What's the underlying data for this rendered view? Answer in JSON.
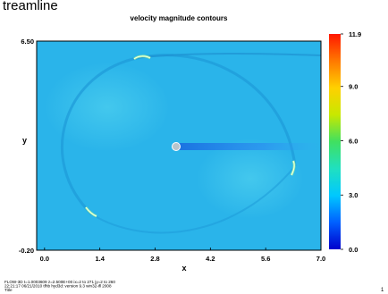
{
  "header_fragment": "treamline",
  "chart_data": {
    "type": "heatmap",
    "title": "velocity magnitude contours",
    "xlabel": "x",
    "ylabel": "y",
    "xlim": [
      -0.2,
      7.0
    ],
    "ylim": [
      -0.2,
      6.5
    ],
    "x_ticks": [
      "0.0",
      "1.4",
      "2.8",
      "4.2",
      "5.6",
      "7.0"
    ],
    "x_tick_values": [
      0.0,
      1.4,
      2.8,
      4.2,
      5.6,
      7.0
    ],
    "y_ticks": [
      "6.50",
      "-0.20"
    ],
    "y_tick_values": [
      6.5,
      -0.2
    ],
    "colorbar": {
      "min": 0.0,
      "max": 11.9,
      "ticks": [
        "11.9",
        "9.0",
        "6.0",
        "3.0",
        "0.0"
      ],
      "tick_values": [
        11.9,
        9.0,
        6.0,
        3.0,
        0.0
      ],
      "colors": [
        "#0000cc",
        "#0060ff",
        "#00c8ff",
        "#20e0c0",
        "#40e060",
        "#c8e800",
        "#ffd000",
        "#ff7800",
        "#ff1800"
      ]
    },
    "field": {
      "background_value": 3.0,
      "features": [
        {
          "kind": "body",
          "x": 3.3,
          "y": 3.7,
          "value": 2.4
        },
        {
          "kind": "wake",
          "x": 3.4,
          "y": 3.7,
          "value": 1.0
        },
        {
          "kind": "vortex-arc",
          "x": 2.4,
          "y": 6.3,
          "value": 5.0
        },
        {
          "kind": "vortex-arc",
          "x": 6.2,
          "y": 2.4,
          "value": 5.5
        },
        {
          "kind": "vortex-arc",
          "x": 1.15,
          "y": 0.9,
          "value": 5.5
        }
      ]
    },
    "grid": false,
    "legend": "colorbar-right"
  },
  "footer": {
    "line1": "FLOW-3D  t=1.0003609  z=2.500E+00  ix=2 to 271  jy=2 to 260",
    "line2": "22:21:17  06/21/2010  tfhb     hyd3d:  version  9.3   win32-ifl 2008",
    "line3": "Title",
    "page_number": "1"
  }
}
